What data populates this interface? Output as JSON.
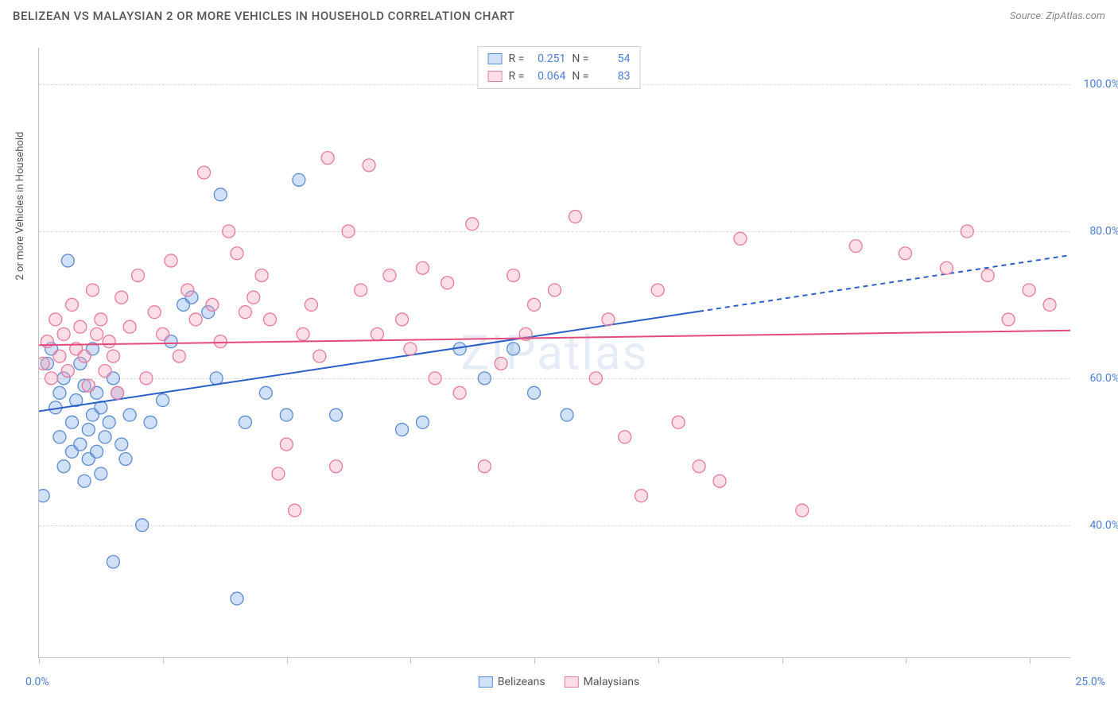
{
  "title": "BELIZEAN VS MALAYSIAN 2 OR MORE VEHICLES IN HOUSEHOLD CORRELATION CHART",
  "source": "Source: ZipAtlas.com",
  "watermark": "ZIPatlas",
  "y_axis_label": "2 or more Vehicles in Household",
  "chart": {
    "type": "scatter",
    "xlim": [
      0,
      25
    ],
    "ylim": [
      22,
      105
    ],
    "x_ticks": [
      0,
      3,
      6,
      9,
      12,
      15,
      18,
      21,
      24
    ],
    "x_tick_labels": {
      "0": "0.0%",
      "25": "25.0%"
    },
    "y_grid": [
      40,
      60,
      80,
      100
    ],
    "y_tick_labels": {
      "40": "40.0%",
      "60": "60.0%",
      "80": "80.0%",
      "100": "100.0%"
    },
    "background": "#ffffff",
    "grid_color": "#dcdcdc",
    "axis_color": "#c0c0c0",
    "tick_label_color": "#4a7ddb",
    "marker_radius": 8,
    "marker_stroke_width": 1.3,
    "series": [
      {
        "name": "Belizeans",
        "fill": "rgba(120,165,230,0.35)",
        "stroke": "#5b8bd4",
        "trend": {
          "slope": 0.85,
          "intercept": 55.5,
          "solid_xmax": 16,
          "dash_xmax": 25,
          "width": 2,
          "color": "#2a5fc9"
        },
        "R": "0.251",
        "N": "54",
        "points": [
          [
            0.1,
            44
          ],
          [
            0.2,
            62
          ],
          [
            0.3,
            64
          ],
          [
            0.4,
            56
          ],
          [
            0.5,
            58
          ],
          [
            0.5,
            52
          ],
          [
            0.6,
            60
          ],
          [
            0.6,
            48
          ],
          [
            0.7,
            76
          ],
          [
            0.8,
            54
          ],
          [
            0.8,
            50
          ],
          [
            0.9,
            57
          ],
          [
            1.0,
            62
          ],
          [
            1.0,
            51
          ],
          [
            1.1,
            46
          ],
          [
            1.1,
            59
          ],
          [
            1.2,
            53
          ],
          [
            1.2,
            49
          ],
          [
            1.3,
            55
          ],
          [
            1.3,
            64
          ],
          [
            1.4,
            50
          ],
          [
            1.4,
            58
          ],
          [
            1.5,
            47
          ],
          [
            1.5,
            56
          ],
          [
            1.6,
            52
          ],
          [
            1.7,
            54
          ],
          [
            1.8,
            35
          ],
          [
            1.8,
            60
          ],
          [
            1.9,
            58
          ],
          [
            2.0,
            51
          ],
          [
            2.1,
            49
          ],
          [
            2.2,
            55
          ],
          [
            2.5,
            40
          ],
          [
            2.7,
            54
          ],
          [
            3.0,
            57
          ],
          [
            3.2,
            65
          ],
          [
            3.5,
            70
          ],
          [
            3.7,
            71
          ],
          [
            4.1,
            69
          ],
          [
            4.3,
            60
          ],
          [
            4.4,
            85
          ],
          [
            4.8,
            30
          ],
          [
            5.0,
            54
          ],
          [
            5.5,
            58
          ],
          [
            6.0,
            55
          ],
          [
            6.3,
            87
          ],
          [
            7.2,
            55
          ],
          [
            8.8,
            53
          ],
          [
            9.3,
            54
          ],
          [
            10.2,
            64
          ],
          [
            10.8,
            60
          ],
          [
            11.5,
            64
          ],
          [
            12.0,
            58
          ],
          [
            12.8,
            55
          ]
        ]
      },
      {
        "name": "Malaysians",
        "fill": "rgba(245,160,185,0.35)",
        "stroke": "#e87a9c",
        "trend": {
          "slope": 0.08,
          "intercept": 64.5,
          "solid_xmax": 25,
          "dash_xmax": 25,
          "width": 2,
          "color": "#e64a7d"
        },
        "R": "0.064",
        "N": "83",
        "points": [
          [
            0.1,
            62
          ],
          [
            0.2,
            65
          ],
          [
            0.3,
            60
          ],
          [
            0.4,
            68
          ],
          [
            0.5,
            63
          ],
          [
            0.6,
            66
          ],
          [
            0.7,
            61
          ],
          [
            0.8,
            70
          ],
          [
            0.9,
            64
          ],
          [
            1.0,
            67
          ],
          [
            1.1,
            63
          ],
          [
            1.2,
            59
          ],
          [
            1.3,
            72
          ],
          [
            1.4,
            66
          ],
          [
            1.5,
            68
          ],
          [
            1.6,
            61
          ],
          [
            1.7,
            65
          ],
          [
            1.8,
            63
          ],
          [
            1.9,
            58
          ],
          [
            2.0,
            71
          ],
          [
            2.2,
            67
          ],
          [
            2.4,
            74
          ],
          [
            2.6,
            60
          ],
          [
            2.8,
            69
          ],
          [
            3.0,
            66
          ],
          [
            3.2,
            76
          ],
          [
            3.4,
            63
          ],
          [
            3.6,
            72
          ],
          [
            3.8,
            68
          ],
          [
            4.0,
            88
          ],
          [
            4.2,
            70
          ],
          [
            4.4,
            65
          ],
          [
            4.6,
            80
          ],
          [
            4.8,
            77
          ],
          [
            5.0,
            69
          ],
          [
            5.2,
            71
          ],
          [
            5.4,
            74
          ],
          [
            5.6,
            68
          ],
          [
            5.8,
            47
          ],
          [
            6.0,
            51
          ],
          [
            6.2,
            42
          ],
          [
            6.4,
            66
          ],
          [
            6.6,
            70
          ],
          [
            6.8,
            63
          ],
          [
            7.0,
            90
          ],
          [
            7.2,
            48
          ],
          [
            7.5,
            80
          ],
          [
            7.8,
            72
          ],
          [
            8.0,
            89
          ],
          [
            8.2,
            66
          ],
          [
            8.5,
            74
          ],
          [
            8.8,
            68
          ],
          [
            9.0,
            64
          ],
          [
            9.3,
            75
          ],
          [
            9.6,
            60
          ],
          [
            9.9,
            73
          ],
          [
            10.2,
            58
          ],
          [
            10.5,
            81
          ],
          [
            10.8,
            48
          ],
          [
            11.2,
            62
          ],
          [
            11.5,
            74
          ],
          [
            11.8,
            66
          ],
          [
            12.0,
            70
          ],
          [
            12.5,
            72
          ],
          [
            13.0,
            82
          ],
          [
            13.5,
            60
          ],
          [
            13.8,
            68
          ],
          [
            14.2,
            52
          ],
          [
            14.6,
            44
          ],
          [
            15.0,
            72
          ],
          [
            15.5,
            54
          ],
          [
            16.0,
            48
          ],
          [
            16.5,
            46
          ],
          [
            17.0,
            79
          ],
          [
            18.5,
            42
          ],
          [
            19.8,
            78
          ],
          [
            21.0,
            77
          ],
          [
            22.0,
            75
          ],
          [
            22.5,
            80
          ],
          [
            23.0,
            74
          ],
          [
            23.5,
            68
          ],
          [
            24.0,
            72
          ],
          [
            24.5,
            70
          ]
        ]
      }
    ]
  },
  "legend_top": {
    "r_label": "R =",
    "n_label": "N ="
  },
  "legend_bottom": {
    "items": [
      "Belizeans",
      "Malaysians"
    ]
  }
}
